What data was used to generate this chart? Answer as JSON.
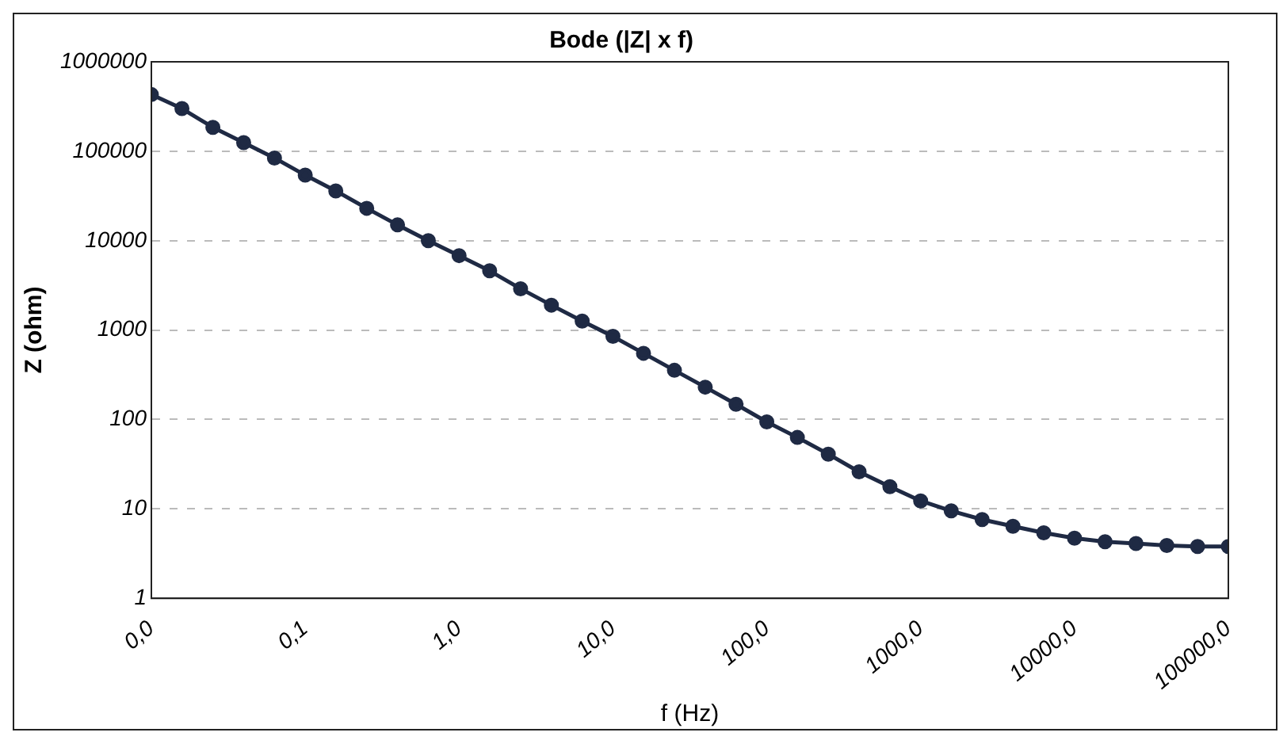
{
  "chart_data": {
    "type": "line",
    "title": "Bode (|Z| x f)",
    "xlabel": "f (Hz)",
    "ylabel": "Z (ohm)",
    "log": "xy",
    "grid": "y",
    "legend": false,
    "marker": "circle",
    "line_style": "solid",
    "xlim": [
      0.01,
      100000
    ],
    "xticks": [
      {
        "value": 0.01,
        "label": "0,0"
      },
      {
        "value": 0.1,
        "label": "0,1"
      },
      {
        "value": 1,
        "label": "1,0"
      },
      {
        "value": 10,
        "label": "10,0"
      },
      {
        "value": 100,
        "label": "100,0"
      },
      {
        "value": 1000,
        "label": "1000,0"
      },
      {
        "value": 10000,
        "label": "10000,0"
      },
      {
        "value": 100000,
        "label": "100000,0"
      }
    ],
    "ylim": [
      1,
      1000000
    ],
    "yticks": [
      1,
      10,
      100,
      1000,
      10000,
      100000,
      1000000
    ],
    "x": [
      0.01,
      0.0158,
      0.0251,
      0.0398,
      0.0631,
      0.1,
      0.158,
      0.251,
      0.398,
      0.631,
      1,
      1.58,
      2.51,
      3.98,
      6.31,
      10,
      15.8,
      25.1,
      39.8,
      63.1,
      100,
      158,
      251,
      398,
      631,
      1000,
      1580,
      2510,
      3980,
      6310,
      10000,
      15800,
      25100,
      39800,
      63100,
      100000
    ],
    "series": [
      {
        "color": "#1f2a44",
        "values": [
          430000,
          300000,
          185000,
          125000,
          84000,
          54000,
          36000,
          23000,
          15000,
          10000,
          6800,
          4600,
          2900,
          1900,
          1260,
          850,
          550,
          355,
          230,
          148,
          94,
          63,
          41,
          26,
          17.7,
          12.3,
          9.5,
          7.6,
          6.4,
          5.4,
          4.7,
          4.3,
          4.1,
          3.9,
          3.8,
          3.8
        ]
      }
    ]
  }
}
